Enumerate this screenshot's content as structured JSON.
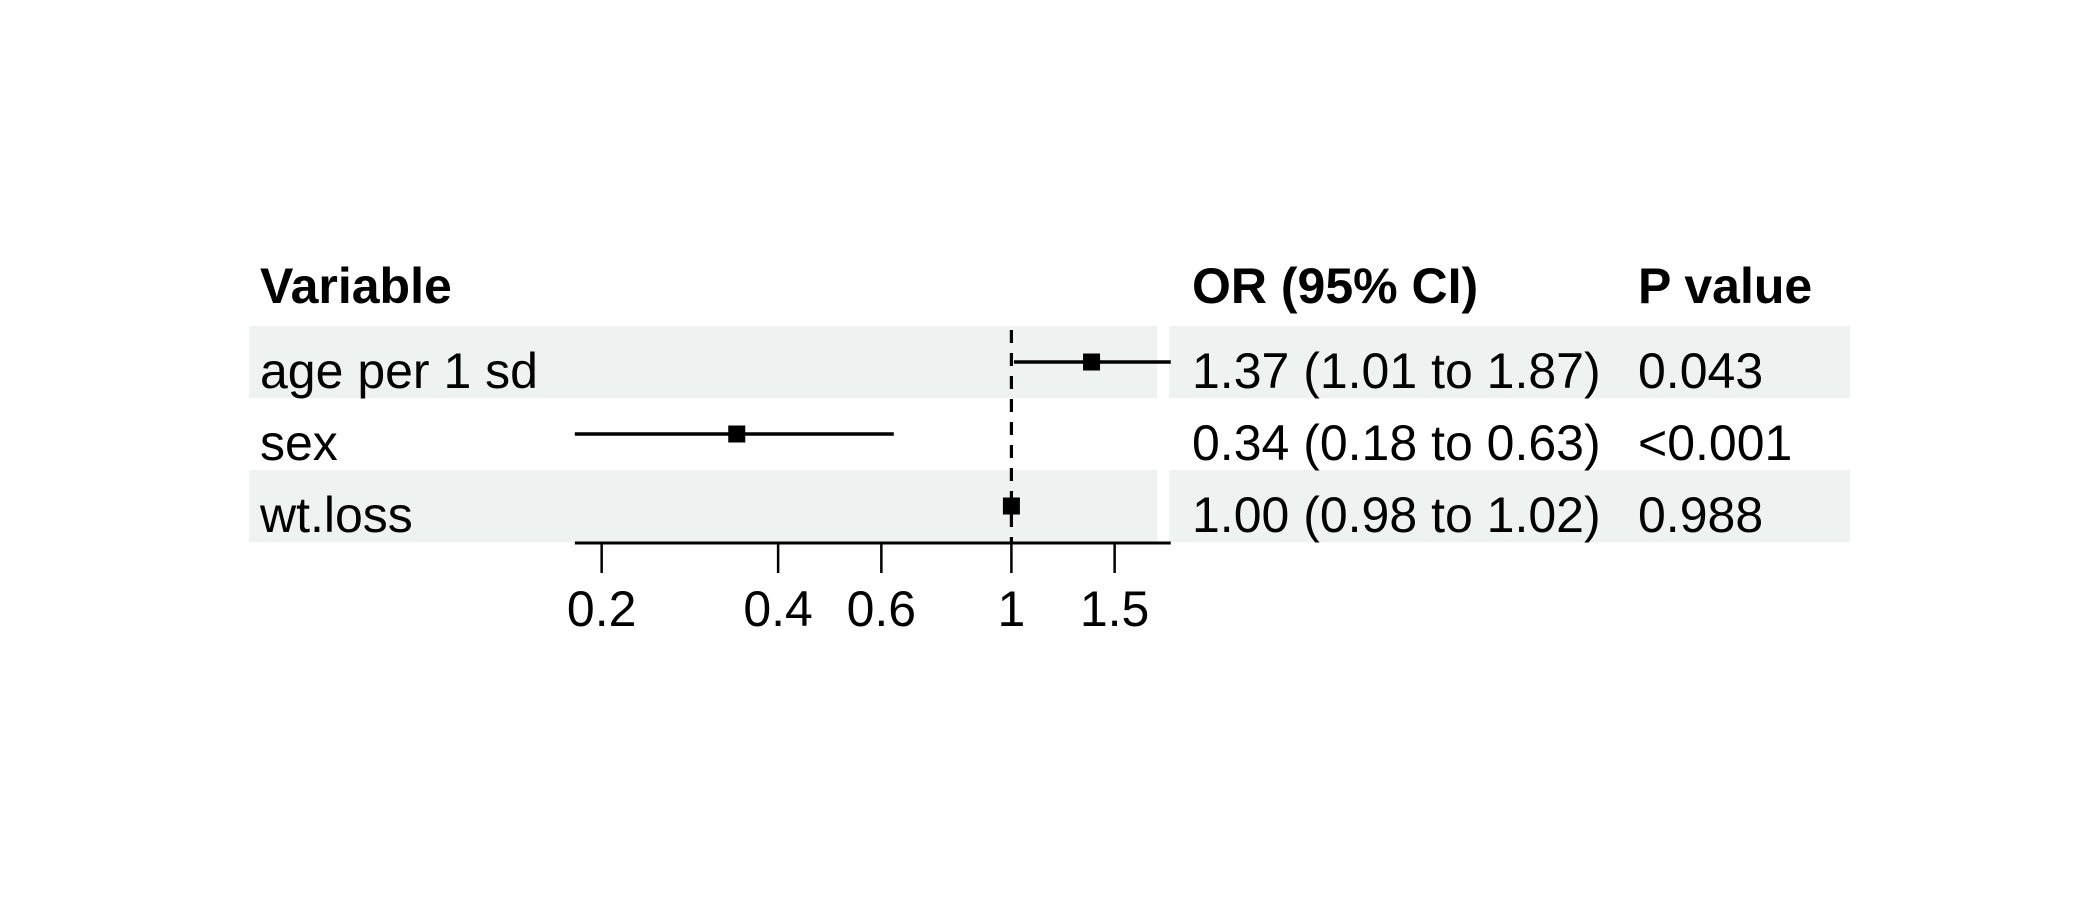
{
  "chart_data": {
    "type": "forest",
    "description": "Forest plot of odds ratios with 95% confidence intervals on a log x scale",
    "columns": {
      "variable": "Variable",
      "or_ci": "OR (95% CI)",
      "p": "P value"
    },
    "rows": [
      {
        "variable": "age per 1 sd",
        "or": 1.37,
        "ci_low": 1.01,
        "ci_high": 1.87,
        "or_ci_label": "1.37 (1.01 to 1.87)",
        "p_label": "0.043",
        "shaded": true
      },
      {
        "variable": "sex",
        "or": 0.34,
        "ci_low": 0.18,
        "ci_high": 0.63,
        "or_ci_label": "0.34 (0.18 to 0.63)",
        "p_label": "<0.001",
        "shaded": false
      },
      {
        "variable": "wt.loss",
        "or": 1.0,
        "ci_low": 0.98,
        "ci_high": 1.02,
        "or_ci_label": "1.00 (0.98 to 1.02)",
        "p_label": "0.988",
        "shaded": true
      }
    ],
    "x_axis": {
      "scale": "log",
      "range": [
        0.18,
        1.87
      ],
      "ticks": [
        0.2,
        0.4,
        0.6,
        1,
        1.5
      ],
      "tick_labels": [
        "0.2",
        "0.4",
        "0.6",
        "1",
        "1.5"
      ],
      "reference_line": 1,
      "grid": false
    },
    "legend": null,
    "colors": {
      "band": "#eef2f1",
      "line": "#000000",
      "text": "#000000",
      "background": "#ffffff"
    }
  }
}
